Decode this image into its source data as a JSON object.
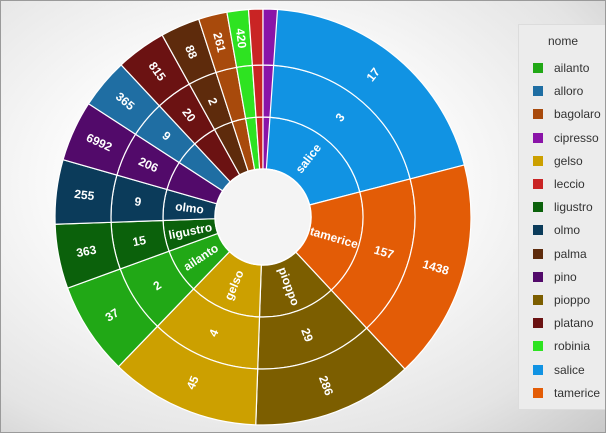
{
  "chart_data": {
    "type": "sunburst",
    "legend_title": "nome",
    "legend_position": "right",
    "species": [
      {
        "name": "ailanto",
        "color": "#21a816"
      },
      {
        "name": "alloro",
        "color": "#1f6ea3"
      },
      {
        "name": "bagolaro",
        "color": "#a84a0c"
      },
      {
        "name": "cipresso",
        "color": "#8a14a8"
      },
      {
        "name": "gelso",
        "color": "#cca000"
      },
      {
        "name": "leccio",
        "color": "#c92424"
      },
      {
        "name": "ligustro",
        "color": "#0b610b"
      },
      {
        "name": "olmo",
        "color": "#0b3b5a"
      },
      {
        "name": "palma",
        "color": "#5e2b0c"
      },
      {
        "name": "pino",
        "color": "#520a6a"
      },
      {
        "name": "pioppo",
        "color": "#7c5e00"
      },
      {
        "name": "platano",
        "color": "#6b1212"
      },
      {
        "name": "robinia",
        "color": "#2ee321"
      },
      {
        "name": "salice",
        "color": "#1193e3"
      },
      {
        "name": "tamerice",
        "color": "#e35c06"
      }
    ],
    "rings": {
      "inner_labels": {
        "salice": "salice",
        "tamerice": "tamerice",
        "pioppo": "pioppo",
        "gelso": "gelso",
        "ailanto": "ailanto",
        "ligustro": "ligustro",
        "olmo": "olmo"
      },
      "middle_labels": {
        "salice": "3",
        "tamerice": "157",
        "pioppo": "29",
        "gelso": "4",
        "ailanto": "2",
        "ligustro": "15",
        "olmo": "9",
        "pino": "206",
        "alloro": "9",
        "platano": "20",
        "palma": "2"
      },
      "outer_labels": {
        "salice": "17",
        "tamerice": "1438",
        "pioppo": "286",
        "gelso": "45",
        "ailanto": "37",
        "ligustro": "363",
        "olmo": "255",
        "pino": "6992",
        "alloro": "365",
        "platano": "815",
        "palma": "88",
        "bagolaro": "261",
        "robinia": "420"
      }
    },
    "segments": [
      {
        "name": "salice",
        "sweep_deg": 75.5
      },
      {
        "name": "tamerice",
        "sweep_deg": 61.5
      },
      {
        "name": "pioppo",
        "sweep_deg": 45
      },
      {
        "name": "gelso",
        "sweep_deg": 42
      },
      {
        "name": "ailanto",
        "sweep_deg": 26
      },
      {
        "name": "ligustro",
        "sweep_deg": 18
      },
      {
        "name": "olmo",
        "sweep_deg": 18
      },
      {
        "name": "pino",
        "sweep_deg": 17
      },
      {
        "name": "alloro",
        "sweep_deg": 14
      },
      {
        "name": "platano",
        "sweep_deg": 14
      },
      {
        "name": "palma",
        "sweep_deg": 11
      },
      {
        "name": "bagolaro",
        "sweep_deg": 8
      },
      {
        "name": "robinia",
        "sweep_deg": 6
      },
      {
        "name": "leccio",
        "sweep_deg": 4
      },
      {
        "name": "cipresso",
        "sweep_deg": 4
      }
    ]
  }
}
